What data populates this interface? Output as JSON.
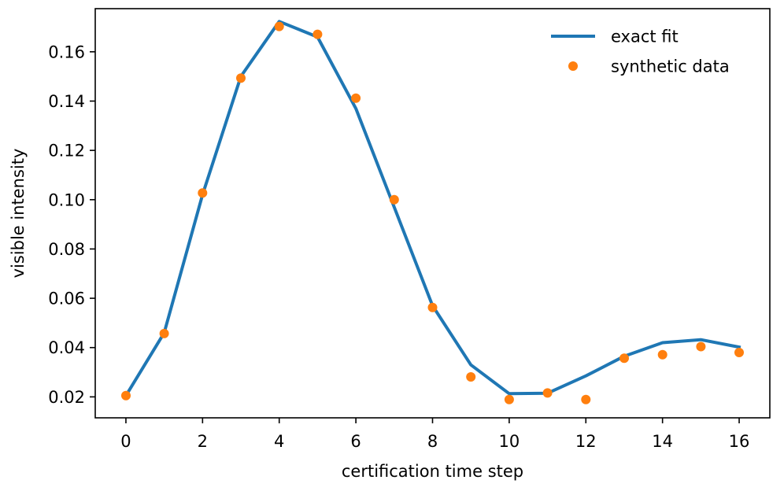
{
  "chart_data": {
    "type": "line",
    "xlabel": "certification time step",
    "ylabel": "visible intensity",
    "xlim": [
      -0.8,
      16.8
    ],
    "ylim": [
      0.0115,
      0.1775
    ],
    "xticks": [
      0,
      2,
      4,
      6,
      8,
      10,
      12,
      14,
      16
    ],
    "xtick_labels": [
      "0",
      "2",
      "4",
      "6",
      "8",
      "10",
      "12",
      "14",
      "16"
    ],
    "yticks": [
      0.02,
      0.04,
      0.06,
      0.08,
      0.1,
      0.12,
      0.14,
      0.16
    ],
    "ytick_labels": [
      "0.02",
      "0.04",
      "0.06",
      "0.08",
      "0.10",
      "0.12",
      "0.14",
      "0.16"
    ],
    "grid": false,
    "legend_position": "top-right",
    "series": [
      {
        "name": "exact fit",
        "kind": "line",
        "color": "#1f77b4",
        "x": [
          0,
          1,
          2,
          3,
          4,
          5,
          6,
          7,
          8,
          9,
          10,
          11,
          12,
          13,
          14,
          15,
          16
        ],
        "y": [
          0.0205,
          0.046,
          0.102,
          0.15,
          0.1723,
          0.166,
          0.137,
          0.097,
          0.057,
          0.033,
          0.0213,
          0.0215,
          0.0285,
          0.0365,
          0.042,
          0.0432,
          0.0402
        ]
      },
      {
        "name": "synthetic data",
        "kind": "scatter",
        "color": "#ff7f0e",
        "x": [
          0,
          1,
          2,
          3,
          4,
          5,
          6,
          7,
          8,
          9,
          10,
          11,
          12,
          13,
          14,
          15,
          16
        ],
        "y": [
          0.0205,
          0.0457,
          0.1027,
          0.1493,
          0.1703,
          0.1671,
          0.1412,
          0.1,
          0.0563,
          0.0281,
          0.0189,
          0.0216,
          0.0189,
          0.0357,
          0.0371,
          0.0404,
          0.038
        ]
      }
    ]
  }
}
